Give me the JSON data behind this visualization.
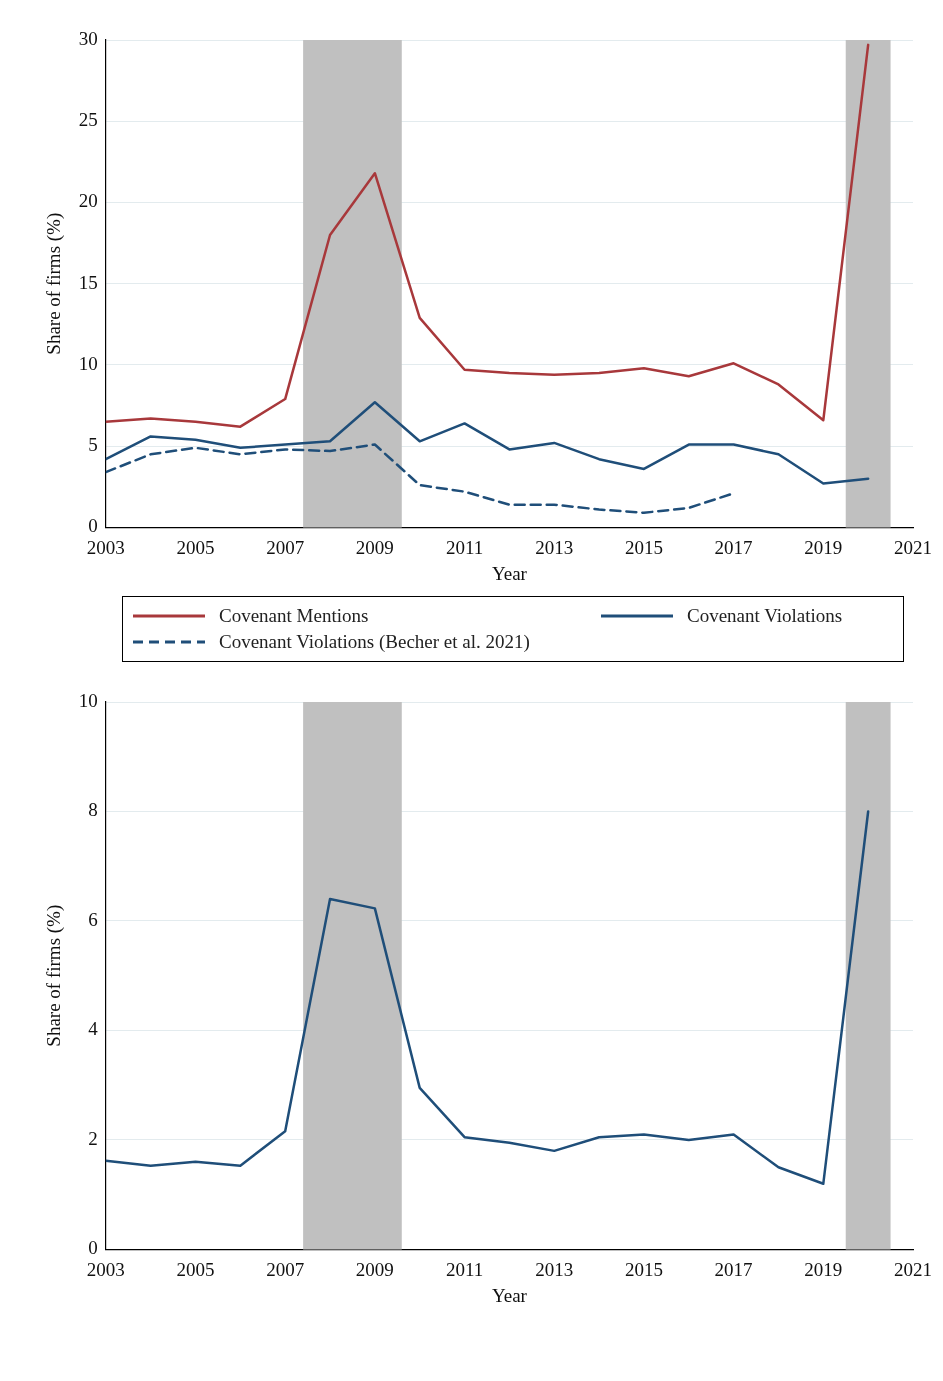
{
  "chart_data": [
    {
      "type": "line",
      "xlabel": "Year",
      "ylabel": "Share of firms (%)",
      "x": [
        2003,
        2004,
        2005,
        2006,
        2007,
        2008,
        2009,
        2010,
        2011,
        2012,
        2013,
        2014,
        2015,
        2016,
        2017,
        2018,
        2019,
        2020
      ],
      "series": [
        {
          "name": "Covenant Mentions",
          "color": "#a8383b",
          "values": [
            6.5,
            6.7,
            6.5,
            6.2,
            7.9,
            18.0,
            21.8,
            12.9,
            9.7,
            9.5,
            9.4,
            9.5,
            9.8,
            9.3,
            10.1,
            8.8,
            6.6,
            29.7
          ]
        },
        {
          "name": "Covenant Violations",
          "color": "#1f4e79",
          "values": [
            4.2,
            5.6,
            5.4,
            4.9,
            5.1,
            5.3,
            7.7,
            5.3,
            6.4,
            4.8,
            5.2,
            4.2,
            3.6,
            5.1,
            5.1,
            4.5,
            2.7,
            3.0
          ]
        },
        {
          "name": "Covenant Violations (Becher et al. 2021)",
          "color": "#1f4e79",
          "line_style": "dashed",
          "values": [
            3.4,
            4.5,
            4.9,
            4.5,
            4.8,
            4.7,
            5.1,
            2.6,
            2.2,
            1.4,
            1.4,
            1.1,
            0.9,
            1.2,
            2.1,
            null,
            null,
            null
          ]
        }
      ],
      "xlim": [
        2003,
        2021
      ],
      "xticks": [
        2003,
        2005,
        2007,
        2009,
        2011,
        2013,
        2015,
        2017,
        2019,
        2021
      ],
      "ylim": [
        0,
        30
      ],
      "yticks": [
        0,
        5,
        10,
        15,
        20,
        25,
        30
      ],
      "bands": [
        {
          "axis": "x",
          "from": 2007.4,
          "to": 2009.6,
          "color": "#c0c0c0"
        },
        {
          "axis": "x",
          "from": 2019.5,
          "to": 2020.5,
          "color": "#c0c0c0"
        }
      ],
      "grid": "y",
      "legend": "bottom",
      "marker": "none"
    },
    {
      "type": "line",
      "xlabel": "Year",
      "ylabel": "Share of firms (%)",
      "x": [
        2003,
        2004,
        2005,
        2006,
        2007,
        2008,
        2009,
        2010,
        2011,
        2012,
        2013,
        2014,
        2015,
        2016,
        2017,
        2018,
        2019,
        2020
      ],
      "series": [
        {
          "color": "#1f4e79",
          "values": [
            1.62,
            1.53,
            1.6,
            1.53,
            2.16,
            6.4,
            6.23,
            2.95,
            2.05,
            1.95,
            1.8,
            2.05,
            2.1,
            2.0,
            2.1,
            1.5,
            1.2,
            8.0
          ]
        }
      ],
      "xlim": [
        2003,
        2021
      ],
      "xticks": [
        2003,
        2005,
        2007,
        2009,
        2011,
        2013,
        2015,
        2017,
        2019,
        2021
      ],
      "ylim": [
        0,
        10
      ],
      "yticks": [
        0,
        2,
        4,
        6,
        8,
        10
      ],
      "bands": [
        {
          "axis": "x",
          "from": 2007.4,
          "to": 2009.6,
          "color": "#c0c0c0"
        },
        {
          "axis": "x",
          "from": 2019.5,
          "to": 2020.5,
          "color": "#c0c0c0"
        }
      ],
      "grid": "y",
      "marker": "none"
    }
  ]
}
